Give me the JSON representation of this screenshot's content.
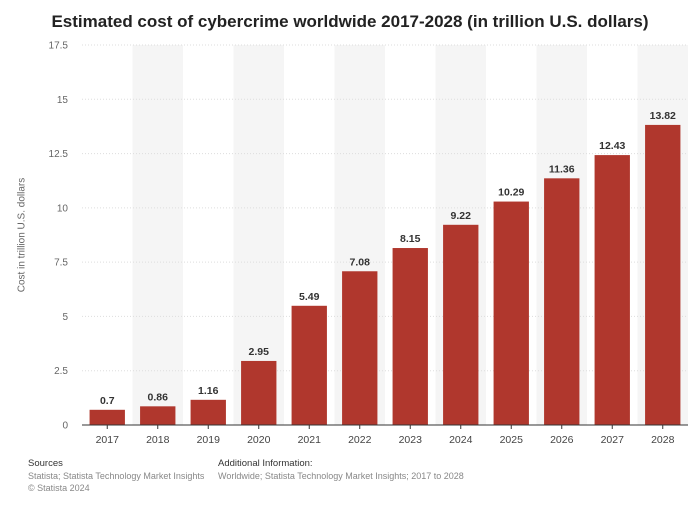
{
  "title": "Estimated cost of cybercrime worldwide 2017-2028 (in trillion U.S. dollars)",
  "chart_data": {
    "type": "bar",
    "title": "Estimated cost of cybercrime worldwide 2017-2028 (in trillion U.S. dollars)",
    "xlabel": "",
    "ylabel": "Cost in trillion U.S. dollars",
    "categories": [
      "2017",
      "2018",
      "2019",
      "2020",
      "2021",
      "2022",
      "2023",
      "2024",
      "2025",
      "2026",
      "2027",
      "2028"
    ],
    "values": [
      0.7,
      0.86,
      1.16,
      2.95,
      5.49,
      7.08,
      8.15,
      9.22,
      10.29,
      11.36,
      12.43,
      13.82
    ],
    "ylim": [
      0,
      17.5
    ],
    "yticks": [
      0,
      2.5,
      5,
      7.5,
      10,
      12.5,
      15,
      17.5
    ],
    "ytick_labels": [
      "0",
      "2.5",
      "5",
      "7.5",
      "10",
      "12.5",
      "15",
      "17.5"
    ],
    "data_labels": [
      "0.7",
      "0.86",
      "1.16",
      "2.95",
      "5.49",
      "7.08",
      "8.15",
      "9.22",
      "10.29",
      "11.36",
      "12.43",
      "13.82"
    ],
    "grid": true,
    "bar_color": "#b0372d",
    "band_color": "#f5f5f5"
  },
  "footer": {
    "sources_heading": "Sources",
    "sources_text": "Statista; Statista Technology Market Insights",
    "copyright": "© Statista 2024",
    "additional_heading": "Additional Information:",
    "additional_text": "Worldwide; Statista Technology Market Insights; 2017 to 2028"
  }
}
